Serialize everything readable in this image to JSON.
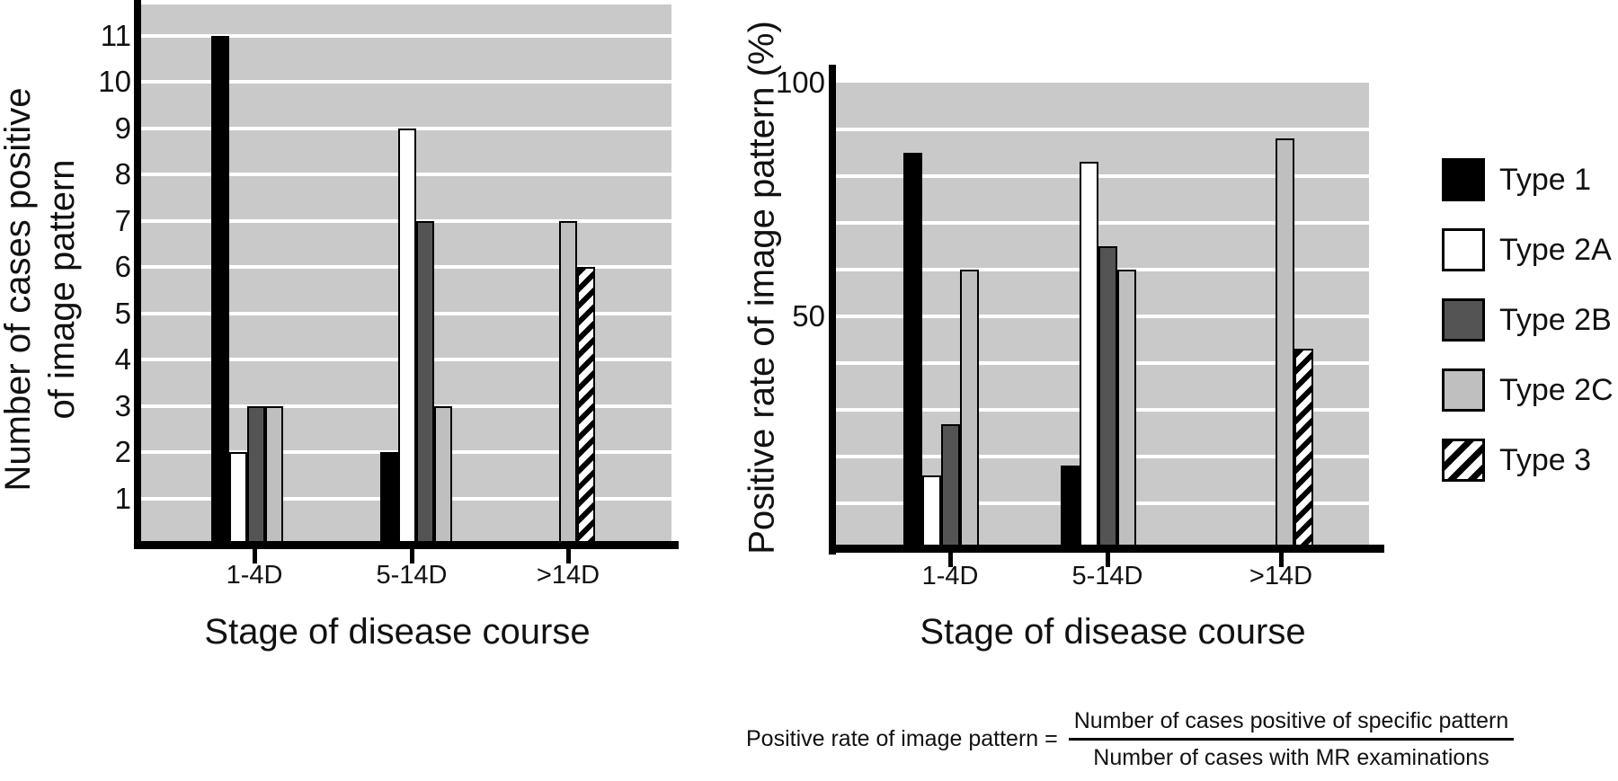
{
  "figure": {
    "background": "#ffffff"
  },
  "colors": {
    "plot_background": "#c9c9c9",
    "gridline": "#ffffff",
    "axis": "#000000",
    "type1": "#000000",
    "type2a": "#ffffff",
    "type2b": "#545454",
    "type2c": "#bfbfbf",
    "type3": "hatch-black-on-white"
  },
  "legend": {
    "items": [
      {
        "label": "Type 1",
        "color": "#000000",
        "style": "solid"
      },
      {
        "label": "Type 2A",
        "color": "#ffffff",
        "style": "outlined"
      },
      {
        "label": "Type 2B",
        "color": "#545454",
        "style": "outlined"
      },
      {
        "label": "Type 2C",
        "color": "#bfbfbf",
        "style": "outlined"
      },
      {
        "label": "Type 3",
        "color": "hatch",
        "style": "hatch"
      }
    ]
  },
  "formula": {
    "lhs": "Positive rate of image pattern =",
    "numerator": "Number of cases positive of specific pattern",
    "denominator": "Number of cases with MR examinations"
  },
  "chart_data": [
    {
      "type": "bar",
      "title": "",
      "xlabel": "Stage of disease course",
      "ylabel_lines": [
        "Number of cases positive",
        "of image pattern"
      ],
      "categories": [
        "1-4D",
        "5-14D",
        ">14D"
      ],
      "yticks": [
        1,
        2,
        3,
        4,
        5,
        6,
        7,
        8,
        9,
        10,
        11
      ],
      "gridlines": [
        1,
        2,
        3,
        4,
        5,
        6,
        7,
        8,
        9,
        10,
        11
      ],
      "ylim": [
        0,
        11.7
      ],
      "grid": "horizontal-white-on-gray",
      "legend_position": "outside-right-shared",
      "series": [
        {
          "name": "Type 1",
          "values": [
            11,
            2,
            null
          ]
        },
        {
          "name": "Type 2A",
          "values": [
            2,
            9,
            null
          ]
        },
        {
          "name": "Type 2B",
          "values": [
            3,
            7,
            null
          ]
        },
        {
          "name": "Type 2C",
          "values": [
            3,
            3,
            7
          ]
        },
        {
          "name": "Type 3",
          "values": [
            null,
            null,
            6
          ]
        }
      ]
    },
    {
      "type": "bar",
      "title": "",
      "xlabel": "Stage of disease course",
      "ylabel_lines": [
        "Positive rate of image pattern (%)"
      ],
      "categories": [
        "1-4D",
        "5-14D",
        ">14D"
      ],
      "yticks": [
        50,
        100
      ],
      "gridlines": [
        10,
        20,
        30,
        40,
        50,
        60,
        70,
        80,
        90,
        100
      ],
      "ylim": [
        0,
        100
      ],
      "grid": "horizontal-white-on-gray",
      "legend_position": "outside-right-shared",
      "series": [
        {
          "name": "Type 1",
          "values": [
            85,
            18,
            null
          ]
        },
        {
          "name": "Type 2A",
          "values": [
            16,
            83,
            null
          ]
        },
        {
          "name": "Type 2B",
          "values": [
            27,
            65,
            null
          ]
        },
        {
          "name": "Type 2C",
          "values": [
            60,
            60,
            88
          ]
        },
        {
          "name": "Type 3",
          "values": [
            null,
            null,
            43
          ]
        }
      ]
    }
  ]
}
